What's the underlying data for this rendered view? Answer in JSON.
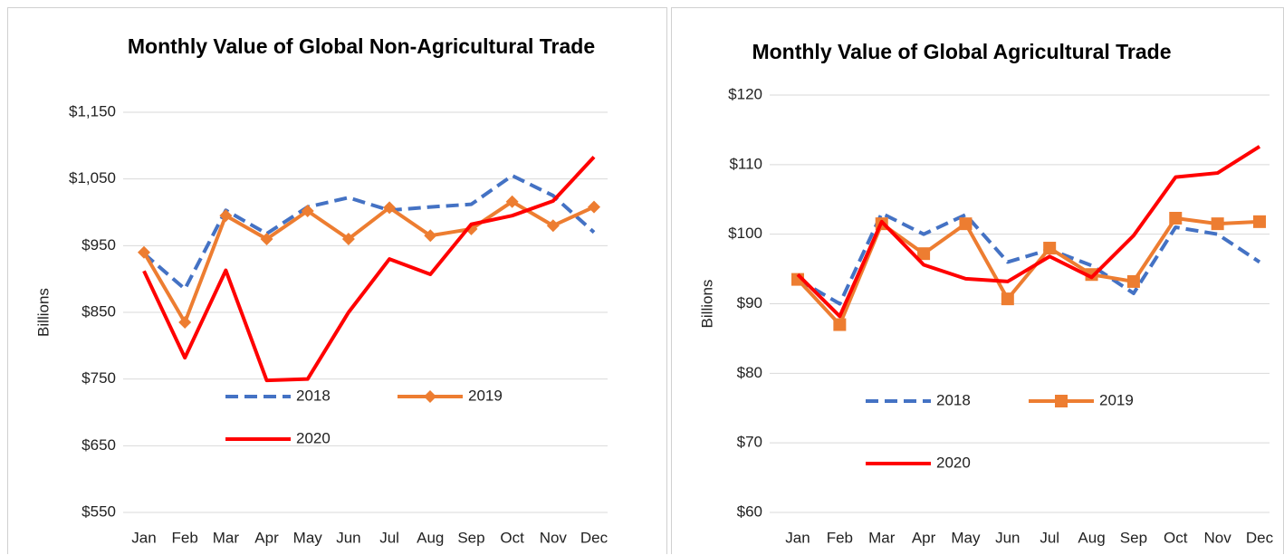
{
  "chart_data": [
    {
      "type": "line",
      "title": "Monthly Value of Global Non-Agricultural Trade",
      "y_label": "Billions",
      "categories": [
        "Jan",
        "Feb",
        "Mar",
        "Apr",
        "May",
        "Jun",
        "Jul",
        "Aug",
        "Sep",
        "Oct",
        "Nov",
        "Dec"
      ],
      "ylim": [
        550,
        1150
      ],
      "yticks": [
        {
          "value": 550,
          "label": "$550"
        },
        {
          "value": 650,
          "label": "$650"
        },
        {
          "value": 750,
          "label": "$750"
        },
        {
          "value": 850,
          "label": "$850"
        },
        {
          "value": 950,
          "label": "$950"
        },
        {
          "value": 1050,
          "label": "$1,050"
        },
        {
          "value": 1150,
          "label": "$1,150"
        }
      ],
      "grid": true,
      "series": [
        {
          "name": "2018",
          "color": "#4472c4",
          "dash": true,
          "values": [
            938,
            885,
            1003,
            968,
            1008,
            1022,
            1003,
            1008,
            1012,
            1055,
            1025,
            970
          ]
        },
        {
          "name": "2019",
          "color": "#ed7d31",
          "marker": "diamond",
          "values": [
            940,
            835,
            995,
            960,
            1002,
            960,
            1007,
            965,
            975,
            1016,
            980,
            1008
          ]
        },
        {
          "name": "2020",
          "color": "#ff0000",
          "values": [
            912,
            782,
            913,
            748,
            750,
            850,
            930,
            907,
            982,
            995,
            1017,
            1083
          ]
        }
      ]
    },
    {
      "type": "line",
      "title": "Monthly Value of Global Agricultural Trade",
      "y_label": "Billions",
      "categories": [
        "Jan",
        "Feb",
        "Mar",
        "Apr",
        "May",
        "Jun",
        "Jul",
        "Aug",
        "Sep",
        "Oct",
        "Nov",
        "Dec"
      ],
      "ylim": [
        60,
        120
      ],
      "yticks": [
        {
          "value": 60,
          "label": "$60"
        },
        {
          "value": 70,
          "label": "$70"
        },
        {
          "value": 80,
          "label": "$80"
        },
        {
          "value": 90,
          "label": "$90"
        },
        {
          "value": 100,
          "label": "$100"
        },
        {
          "value": 110,
          "label": "$110"
        },
        {
          "value": 120,
          "label": "$120"
        }
      ],
      "grid": true,
      "series": [
        {
          "name": "2018",
          "color": "#4472c4",
          "dash": true,
          "values": [
            93.5,
            90,
            103,
            100,
            102.8,
            96,
            97.8,
            95.5,
            91.5,
            101,
            100,
            96
          ]
        },
        {
          "name": "2019",
          "color": "#ed7d31",
          "marker": "square",
          "values": [
            93.5,
            87,
            101.5,
            97.2,
            101.5,
            90.7,
            98,
            94.2,
            93.2,
            102.3,
            101.5,
            101.8
          ]
        },
        {
          "name": "2020",
          "color": "#ff0000",
          "values": [
            94.2,
            88.2,
            101.8,
            95.6,
            93.6,
            93.2,
            96.8,
            93.8,
            99.8,
            108.2,
            108.8,
            112.6
          ]
        }
      ]
    }
  ]
}
